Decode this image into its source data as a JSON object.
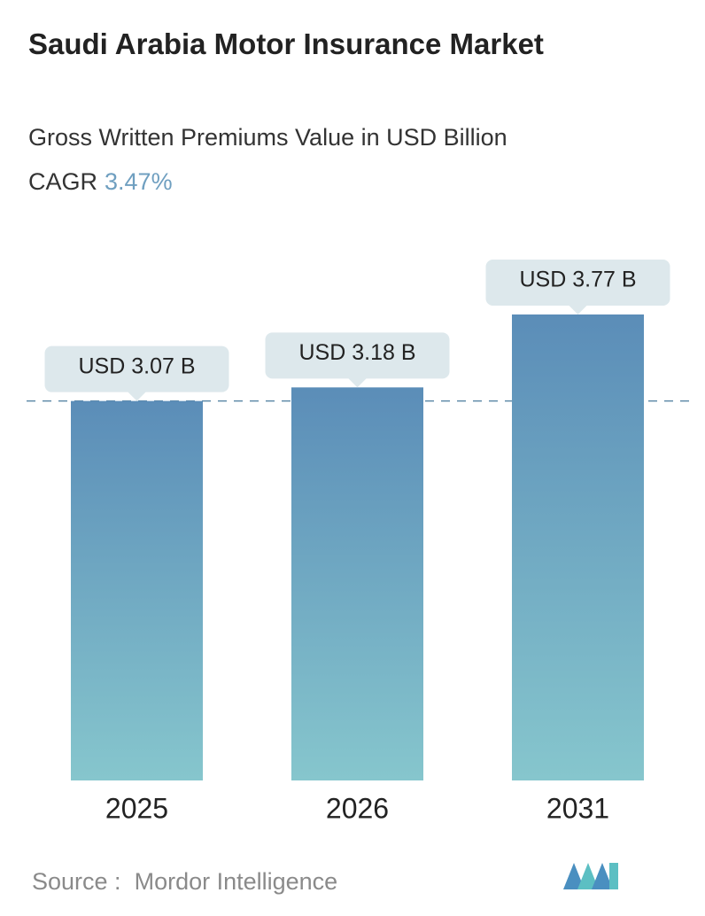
{
  "chart_data": {
    "type": "bar",
    "title": "Saudi Arabia Motor Insurance Market",
    "subtitle": "Gross Written Premiums Value in USD Billion",
    "cagr_label": "CAGR",
    "cagr_value": "3.47%",
    "categories": [
      "2025",
      "2026",
      "2031"
    ],
    "values": [
      3.07,
      3.18,
      3.77
    ],
    "value_labels": [
      "USD 3.07 B",
      "USD 3.18 B",
      "USD 3.77 B"
    ],
    "color_top": "#5b8db8",
    "color_bottom": "#86c6cd",
    "source_label": "Source :",
    "source": "Mordor Intelligence"
  }
}
